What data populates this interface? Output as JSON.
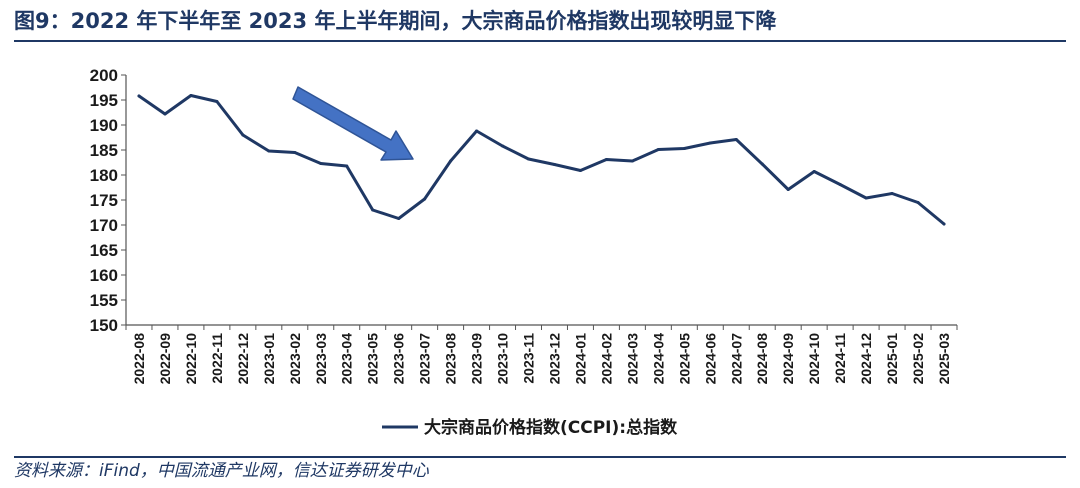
{
  "header": {
    "title": "图9：2022 年下半年至 2023 年上半年期间，大宗商品价格指数出现较明显下降"
  },
  "footer": {
    "source": "资料来源：iFind，中国流通产业网，信达证券研发中心"
  },
  "chart_data": {
    "type": "line",
    "title": "",
    "xlabel": "",
    "ylabel": "",
    "ylim": [
      150,
      200
    ],
    "yticks": [
      150,
      155,
      160,
      165,
      170,
      175,
      180,
      185,
      190,
      195,
      200
    ],
    "categories": [
      "2022-08",
      "2022-09",
      "2022-10",
      "2022-11",
      "2022-12",
      "2023-01",
      "2023-02",
      "2023-03",
      "2023-04",
      "2023-05",
      "2023-06",
      "2023-07",
      "2023-08",
      "2023-09",
      "2023-10",
      "2023-11",
      "2023-12",
      "2024-01",
      "2024-02",
      "2024-03",
      "2024-04",
      "2024-05",
      "2024-06",
      "2024-07",
      "2024-08",
      "2024-09",
      "2024-10",
      "2024-11",
      "2024-12",
      "2025-01",
      "2025-02",
      "2025-03"
    ],
    "series": [
      {
        "name": "大宗商品价格指数(CCPI):总指数",
        "color": "#1f3864",
        "values": [
          195.8,
          192.2,
          195.9,
          194.7,
          188.0,
          184.8,
          184.5,
          182.3,
          181.8,
          173.0,
          171.3,
          175.2,
          182.8,
          188.8,
          185.8,
          183.2,
          182.1,
          180.9,
          183.1,
          182.8,
          185.1,
          185.3,
          186.4,
          187.1,
          182.2,
          177.1,
          180.7,
          178.1,
          175.4,
          176.3,
          174.5,
          170.2
        ]
      }
    ],
    "grid": false,
    "legend_position": "bottom",
    "annotations": [
      {
        "type": "arrow",
        "color": "#4472c4",
        "direction": "down-right"
      }
    ]
  }
}
